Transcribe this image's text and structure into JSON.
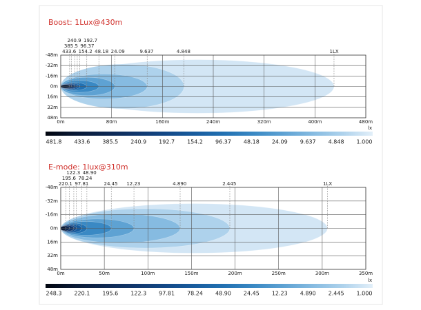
{
  "chart_data": [
    {
      "type": "isolux",
      "title": "Boost: 1Lux@430m",
      "title_color": "#d0302b",
      "xlim": [
        0,
        480
      ],
      "xticks": [
        {
          "value": 0,
          "label": "0m"
        },
        {
          "value": 80,
          "label": "80m"
        },
        {
          "value": 160,
          "label": "160m"
        },
        {
          "value": 240,
          "label": "240m"
        },
        {
          "value": 320,
          "label": "320m"
        },
        {
          "value": 400,
          "label": "400m"
        },
        {
          "value": 480,
          "label": "480m"
        }
      ],
      "ylim": [
        -48,
        48
      ],
      "invert_y": true,
      "yticks": [
        {
          "value": -48,
          "label": "-48m"
        },
        {
          "value": -32,
          "label": "-32m"
        },
        {
          "value": -16,
          "label": "-16m"
        },
        {
          "value": 0,
          "label": "0m"
        },
        {
          "value": 16,
          "label": "16m"
        },
        {
          "value": 32,
          "label": "32m"
        },
        {
          "value": 48,
          "label": "48m"
        }
      ],
      "grid": true,
      "contours": {
        "levels": [
          433.6,
          385.5,
          240.9,
          192.7,
          154.2,
          96.37,
          48.18,
          24.09,
          9.637,
          4.848,
          1
        ],
        "value_labels": [
          "433.6",
          "385.5",
          "240.9",
          "192.7",
          "154.2",
          "96.37",
          "48.18",
          "24.09",
          "9.637",
          "4.848",
          "1LX"
        ],
        "distances": [
          14,
          17,
          22,
          26,
          30,
          41,
          60,
          85,
          136,
          194,
          430
        ],
        "half_widths": [
          2.5,
          3,
          3.5,
          4,
          5,
          6,
          9,
          14,
          19,
          34,
          41
        ],
        "colors": [
          "#0a1a36",
          "#0d2750",
          "#10366c",
          "#134886",
          "#185c9e",
          "#2271b2",
          "#3a89c4",
          "#5ea2d3",
          "#86bbe1",
          "#aed2ec",
          "#d3e6f5"
        ]
      },
      "colorbar": {
        "unit": "lx",
        "values": [
          481.8,
          433.6,
          385.5,
          240.9,
          192.7,
          154.2,
          96.37,
          48.18,
          24.09,
          9.637,
          4.848,
          1
        ],
        "value_labels": [
          "481.8",
          "433.6",
          "385.5",
          "240.9",
          "192.7",
          "154.2",
          "96.37",
          "48.18",
          "24.09",
          "9.637",
          "4.848",
          "1.000"
        ],
        "colors": [
          "#02060f",
          "#0a1a36",
          "#0d2750",
          "#10366c",
          "#134886",
          "#185c9e",
          "#2271b2",
          "#3a89c4",
          "#5ea2d3",
          "#86bbe1",
          "#aed2ec",
          "#e2eff9"
        ]
      }
    },
    {
      "type": "isolux",
      "title": "E-mode: 1lux@310m",
      "title_color": "#d0302b",
      "xlim": [
        0,
        350
      ],
      "xticks": [
        {
          "value": 0,
          "label": "0m"
        },
        {
          "value": 50,
          "label": "50m"
        },
        {
          "value": 100,
          "label": "100m"
        },
        {
          "value": 150,
          "label": "150m"
        },
        {
          "value": 200,
          "label": "200m"
        },
        {
          "value": 250,
          "label": "250m"
        },
        {
          "value": 300,
          "label": "300m"
        },
        {
          "value": 350,
          "label": "350m"
        }
      ],
      "ylim": [
        -48,
        48
      ],
      "invert_y": true,
      "yticks": [
        {
          "value": -48,
          "label": "-48m"
        },
        {
          "value": -32,
          "label": "-32m"
        },
        {
          "value": -16,
          "label": "-16m"
        },
        {
          "value": 0,
          "label": "0m"
        },
        {
          "value": 16,
          "label": "16m"
        },
        {
          "value": 32,
          "label": "32m"
        },
        {
          "value": 48,
          "label": "48m"
        }
      ],
      "grid": true,
      "contours": {
        "levels": [
          220.1,
          195.6,
          122.3,
          97.81,
          78.24,
          48.9,
          24.45,
          12.23,
          4.89,
          2.445,
          1
        ],
        "value_labels": [
          "220.1",
          "195.6",
          "122.3",
          "97.81",
          "78.24",
          "48.90",
          "24.45",
          "12.23",
          "4.890",
          "2.445",
          "1LX"
        ],
        "distances": [
          6,
          10,
          15,
          18,
          24,
          30,
          58,
          84,
          137,
          194,
          306
        ],
        "half_widths": [
          2.5,
          3,
          3.5,
          4,
          5,
          6,
          8,
          11,
          17,
          23,
          29
        ],
        "colors": [
          "#0a1a36",
          "#0d2750",
          "#10366c",
          "#134886",
          "#185c9e",
          "#2271b2",
          "#3a89c4",
          "#5ea2d3",
          "#86bbe1",
          "#aed2ec",
          "#d3e6f5"
        ]
      },
      "colorbar": {
        "unit": "lx",
        "values": [
          248.3,
          220.1,
          195.6,
          122.3,
          97.81,
          78.24,
          48.9,
          24.45,
          12.23,
          4.89,
          2.445,
          1
        ],
        "value_labels": [
          "248.3",
          "220.1",
          "195.6",
          "122.3",
          "97.81",
          "78.24",
          "48.90",
          "24.45",
          "12.23",
          "4.890",
          "2.445",
          "1.000"
        ],
        "colors": [
          "#02060f",
          "#0a1a36",
          "#0d2750",
          "#10366c",
          "#134886",
          "#185c9e",
          "#2271b2",
          "#3a89c4",
          "#5ea2d3",
          "#86bbe1",
          "#aed2ec",
          "#e2eff9"
        ]
      }
    }
  ]
}
